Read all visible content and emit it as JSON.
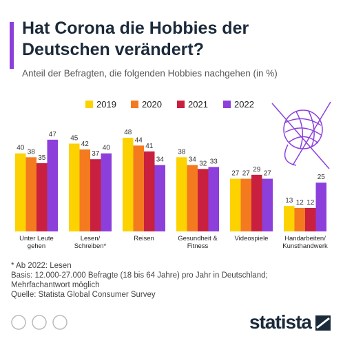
{
  "chart_data": {
    "type": "bar",
    "title": "Hat Corona die Hobbies der Deutschen verändert?",
    "subtitle": "Anteil der Befragten, die folgenden Hobbies nachgehen (in %)",
    "categories": [
      "Unter Leute gehen",
      "Lesen/ Schreiben*",
      "Reisen",
      "Gesundheit & Fitness",
      "Videospiele",
      "Handarbeiten/ Kunsthandwerk"
    ],
    "series": [
      {
        "name": "2019",
        "color": "#fcd200",
        "values": [
          40,
          45,
          48,
          38,
          27,
          13
        ]
      },
      {
        "name": "2020",
        "color": "#f47a1f",
        "values": [
          38,
          42,
          44,
          34,
          27,
          12
        ]
      },
      {
        "name": "2021",
        "color": "#c8203e",
        "values": [
          35,
          37,
          41,
          32,
          29,
          12
        ]
      },
      {
        "name": "2022",
        "color": "#8d3fdc",
        "values": [
          47,
          40,
          34,
          33,
          27,
          25
        ]
      }
    ],
    "notes": [
      "* Ab 2022: Lesen",
      "Basis: 12.000-27.000 Befragte (18 bis 64 Jahre) pro Jahr in Deutschland; Mehrfachantwort möglich"
    ],
    "source": "Quelle: Statista Global Consumer Survey",
    "brand": "statista"
  }
}
